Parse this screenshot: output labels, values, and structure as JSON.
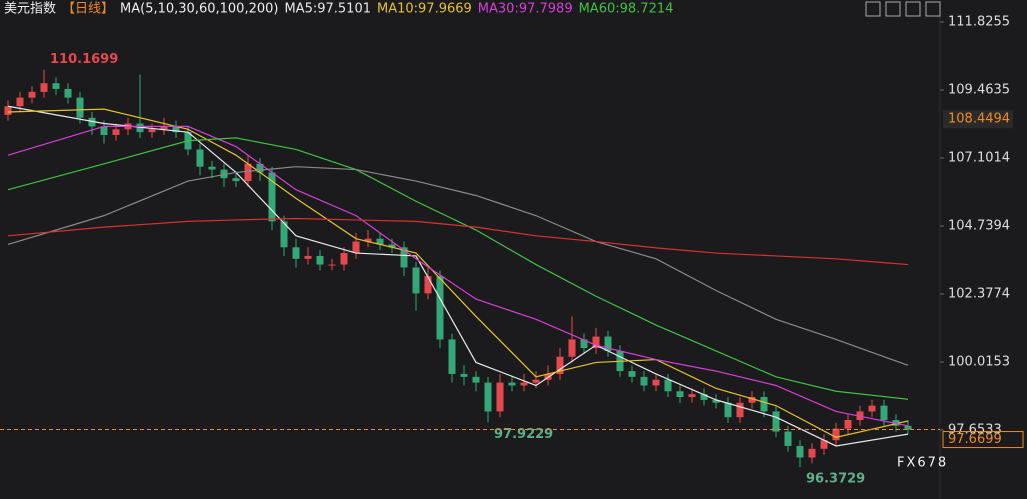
{
  "chart_data": {
    "type": "candlestick",
    "title": "美元指数",
    "period": "【日线】",
    "ma_label": "MA(5,10,30,60,100,200)",
    "watermark": "FX678",
    "up_color": "#e5494d",
    "down_color": "#33a775",
    "ylim": [
      95.57,
      112.59
    ],
    "yticks": [
      111.8255,
      109.4635,
      107.1014,
      104.7394,
      102.3774,
      100.0153,
      97.6533
    ],
    "open": [
      108.6,
      108.9,
      109.2,
      109.4,
      109.7,
      109.5,
      109.2,
      108.5,
      108.2,
      107.9,
      108.1,
      108.3,
      108.0,
      108.1,
      108.2,
      108.0,
      107.4,
      106.8,
      106.7,
      106.4,
      106.3,
      106.9,
      106.6,
      104.9,
      104.0,
      103.6,
      103.7,
      103.4,
      103.4,
      103.8,
      104.2,
      104.3,
      104.1,
      104.0,
      103.3,
      102.4,
      103.0,
      100.8,
      99.6,
      99.5,
      99.3,
      98.3,
      99.3,
      99.2,
      99.3,
      99.4,
      99.6,
      100.2,
      100.8,
      100.5,
      100.9,
      100.4,
      99.7,
      99.5,
      99.2,
      99.4,
      99.0,
      98.8,
      98.9,
      98.7,
      98.6,
      98.1,
      98.6,
      98.8,
      98.3,
      97.6,
      97.1,
      96.7,
      97.0,
      97.3,
      97.7,
      98.0,
      98.3,
      98.5,
      98.0,
      97.8
    ],
    "high": [
      109.1,
      109.4,
      109.6,
      110.17,
      109.9,
      109.7,
      109.4,
      108.7,
      108.4,
      108.3,
      108.5,
      110.0,
      108.3,
      108.5,
      108.4,
      108.2,
      107.6,
      107.0,
      106.9,
      106.6,
      107.2,
      107.1,
      106.8,
      105.1,
      104.3,
      104.0,
      103.9,
      103.6,
      104.0,
      104.5,
      104.6,
      104.5,
      104.3,
      104.2,
      103.5,
      103.3,
      103.2,
      101.0,
      99.9,
      99.7,
      99.5,
      99.6,
      99.5,
      99.6,
      99.7,
      99.9,
      100.5,
      101.6,
      101.0,
      101.2,
      101.1,
      100.6,
      99.9,
      99.7,
      99.6,
      99.6,
      99.2,
      99.1,
      99.1,
      98.9,
      98.8,
      98.8,
      99.0,
      99.0,
      98.5,
      97.8,
      97.3,
      97.2,
      97.5,
      97.9,
      98.2,
      98.5,
      98.7,
      98.7,
      98.2,
      98.0
    ],
    "low": [
      108.4,
      108.7,
      109.0,
      109.2,
      109.3,
      109.0,
      108.3,
      107.9,
      107.6,
      107.7,
      107.9,
      107.8,
      107.8,
      107.9,
      107.8,
      107.2,
      106.5,
      106.4,
      106.1,
      106.1,
      106.1,
      106.3,
      104.6,
      103.7,
      103.3,
      103.4,
      103.2,
      103.2,
      103.2,
      103.6,
      104.0,
      103.9,
      103.8,
      103.0,
      101.8,
      102.2,
      100.5,
      99.3,
      99.2,
      99.0,
      97.92,
      98.1,
      99.0,
      99.0,
      99.1,
      99.2,
      99.4,
      100.0,
      100.3,
      100.3,
      100.2,
      99.5,
      99.3,
      99.0,
      99.0,
      98.8,
      98.6,
      98.6,
      98.5,
      98.4,
      97.9,
      97.9,
      98.4,
      98.1,
      97.4,
      96.9,
      96.37,
      96.5,
      96.8,
      97.1,
      97.5,
      97.8,
      98.1,
      97.8,
      97.6,
      97.5
    ],
    "close": [
      108.9,
      109.2,
      109.4,
      109.7,
      109.5,
      109.2,
      108.5,
      108.2,
      107.9,
      108.1,
      108.3,
      108.0,
      108.1,
      108.2,
      108.0,
      107.4,
      106.8,
      106.7,
      106.4,
      106.3,
      106.9,
      106.6,
      104.9,
      104.0,
      103.6,
      103.7,
      103.4,
      103.4,
      103.8,
      104.2,
      104.3,
      104.1,
      104.0,
      103.3,
      102.4,
      103.0,
      100.8,
      99.6,
      99.5,
      99.3,
      98.3,
      99.3,
      99.2,
      99.3,
      99.4,
      99.6,
      100.2,
      100.8,
      100.5,
      100.9,
      100.4,
      99.7,
      99.5,
      99.2,
      99.4,
      99.0,
      98.8,
      98.9,
      98.7,
      98.6,
      98.1,
      98.6,
      98.8,
      98.3,
      97.6,
      97.1,
      96.7,
      97.0,
      97.3,
      97.7,
      98.0,
      98.3,
      98.5,
      98.0,
      97.8,
      97.67
    ],
    "series": [
      {
        "name": "MA5:97.5101",
        "color": "#e8e8e8",
        "x": [
          0,
          8,
          15,
          19,
          24,
          29,
          34,
          39,
          44,
          49,
          54,
          59,
          64,
          69,
          75
        ],
        "values": [
          108.9,
          108.3,
          108.0,
          106.6,
          104.4,
          103.8,
          103.7,
          100.0,
          99.2,
          100.6,
          99.6,
          98.7,
          98.1,
          97.1,
          97.5101
        ]
      },
      {
        "name": "MA10:97.9669",
        "color": "#e6c229",
        "x": [
          0,
          8,
          15,
          19,
          24,
          29,
          34,
          39,
          44,
          49,
          54,
          59,
          64,
          69,
          75
        ],
        "values": [
          108.7,
          108.8,
          108.1,
          107.2,
          105.7,
          104.3,
          103.8,
          101.6,
          99.5,
          100.0,
          100.1,
          99.1,
          98.5,
          97.4,
          97.9669
        ]
      },
      {
        "name": "MA30:97.7989",
        "color": "#d63fd6",
        "x": [
          0,
          8,
          15,
          19,
          24,
          29,
          34,
          39,
          44,
          49,
          54,
          59,
          64,
          69,
          75
        ],
        "values": [
          107.2,
          108.2,
          108.2,
          107.5,
          106.0,
          105.1,
          103.6,
          102.2,
          101.5,
          100.6,
          100.1,
          99.7,
          99.2,
          98.3,
          97.7989
        ]
      },
      {
        "name": "MA60:98.7214",
        "color": "#3fc23f",
        "x": [
          0,
          8,
          15,
          19,
          24,
          29,
          34,
          39,
          44,
          49,
          54,
          59,
          64,
          69,
          75
        ],
        "values": [
          106.0,
          106.9,
          107.7,
          107.8,
          107.4,
          106.7,
          105.6,
          104.6,
          103.4,
          102.3,
          101.3,
          100.4,
          99.5,
          99.0,
          98.7214
        ]
      },
      {
        "color": "#8a8a8a",
        "x": [
          0,
          8,
          15,
          19,
          24,
          29,
          34,
          39,
          44,
          49,
          54,
          59,
          64,
          69,
          75
        ],
        "values": [
          104.1,
          105.1,
          106.3,
          106.6,
          106.8,
          106.7,
          106.3,
          105.8,
          105.1,
          104.2,
          103.6,
          102.5,
          101.5,
          100.8,
          99.9
        ]
      },
      {
        "color": "#d8322f",
        "x": [
          0,
          8,
          15,
          19,
          24,
          29,
          34,
          39,
          44,
          49,
          54,
          59,
          64,
          69,
          75
        ],
        "values": [
          104.4,
          104.7,
          104.9,
          104.95,
          105.0,
          104.95,
          104.9,
          104.7,
          104.4,
          104.2,
          103.98,
          103.8,
          103.7,
          103.6,
          103.4
        ]
      }
    ],
    "annotations": [
      {
        "x": 3,
        "value": 110.1699,
        "color": "#e5494d"
      },
      {
        "x": 40,
        "value": 97.9229,
        "color": "#5fb08a"
      },
      {
        "x": 66,
        "value": 96.3729,
        "color": "#5fb08a"
      }
    ],
    "marker_price": 108.4494,
    "last_price": 97.6699
  }
}
